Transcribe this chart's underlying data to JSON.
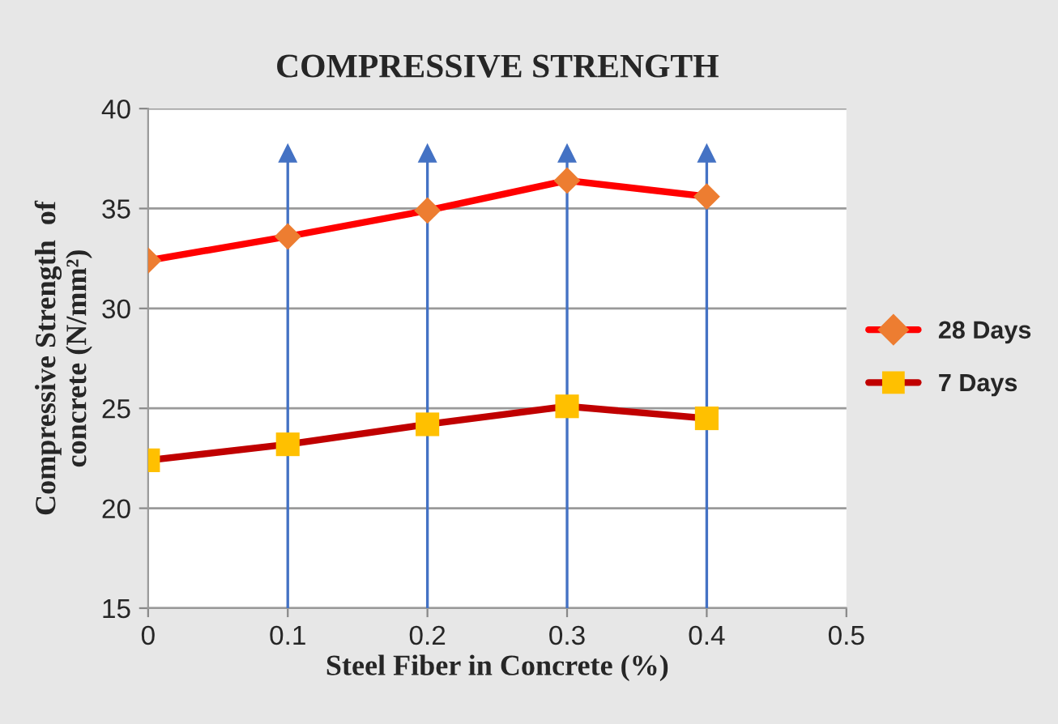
{
  "chart_data": {
    "type": "line",
    "title": "COMPRESSIVE STRENGTH",
    "xlabel": "Steel Fiber in Concrete (%)",
    "ylabel": "Compressive Strength  of\nconcrete (N/mm²)",
    "x": [
      0,
      0.1,
      0.2,
      0.3,
      0.4
    ],
    "series": [
      {
        "name": "28 Days",
        "color": "#ff0000",
        "colors": [
          "#ed7d31",
          "#ed7d31",
          "#ed7d31",
          "#ed7d31",
          "#ed7d31"
        ],
        "marker": "diamond",
        "values": [
          32.4,
          33.6,
          34.9,
          36.4,
          35.6
        ]
      },
      {
        "name": "7 Days",
        "color": "#c00000",
        "colors": [
          "#ffc000",
          "#ffc000",
          "#ffc000",
          "#ffc000",
          "#ffc000"
        ],
        "marker": "square",
        "values": [
          22.4,
          23.2,
          24.2,
          25.1,
          24.5
        ]
      }
    ],
    "xlim": [
      0,
      0.5
    ],
    "xticks": [
      0,
      0.1,
      0.2,
      0.3,
      0.4,
      0.5
    ],
    "ylim": [
      15,
      40
    ],
    "yticks": [
      15,
      20,
      25,
      30,
      35,
      40
    ],
    "ref_lines": [
      {
        "axis": "x",
        "value": 0.1,
        "color": "#4472c4"
      },
      {
        "axis": "x",
        "value": 0.2,
        "color": "#4472c4"
      },
      {
        "axis": "x",
        "value": 0.3,
        "color": "#4472c4"
      },
      {
        "axis": "x",
        "value": 0.4,
        "color": "#4472c4"
      }
    ],
    "grid": "y",
    "legend": "right",
    "line_style": "solid"
  }
}
